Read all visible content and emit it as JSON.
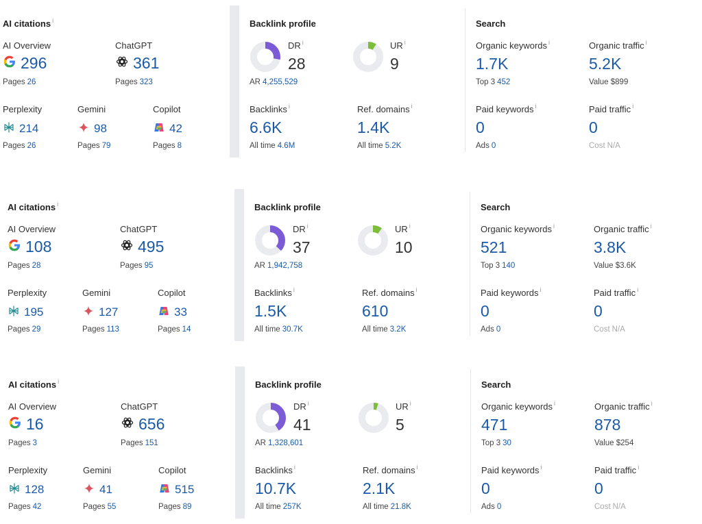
{
  "labels": {
    "ai_citations": "AI citations",
    "backlink_profile": "Backlink profile",
    "search": "Search",
    "ai_overview": "AI Overview",
    "chatgpt": "ChatGPT",
    "perplexity": "Perplexity",
    "gemini": "Gemini",
    "copilot": "Copilot",
    "pages": "Pages",
    "dr": "DR",
    "ur": "UR",
    "ar": "AR",
    "backlinks": "Backlinks",
    "ref_domains": "Ref. domains",
    "all_time": "All time",
    "organic_keywords": "Organic keywords",
    "organic_traffic": "Organic traffic",
    "top3": "Top 3",
    "value": "Value",
    "paid_keywords": "Paid keywords",
    "paid_traffic": "Paid traffic",
    "ads": "Ads",
    "cost": "Cost",
    "info": "i"
  },
  "colors": {
    "accent": "#1a5aa8",
    "dr": "#7b5cd6",
    "ur": "#7cbd3a",
    "ring": "#e9ebef",
    "separator": "#e8eaed"
  },
  "rows": [
    {
      "ai": {
        "ai_overview": "296",
        "ai_overview_pages": "26",
        "chatgpt": "361",
        "chatgpt_pages": "323",
        "perplexity": "214",
        "perplexity_pages": "26",
        "gemini": "98",
        "gemini_pages": "79",
        "copilot": "42",
        "copilot_pages": "8"
      },
      "backlink": {
        "dr": "28",
        "dr_fraction": 0.28,
        "ar": "4,255,529",
        "ur": "9",
        "ur_fraction": 0.09,
        "backlinks": "6.6K",
        "backlinks_all_time": "4.6M",
        "ref_domains": "1.4K",
        "ref_domains_all_time": "5.2K"
      },
      "search": {
        "organic_keywords": "1.7K",
        "top3": "452",
        "organic_traffic": "5.2K",
        "value": "$899",
        "paid_keywords": "0",
        "ads": "0",
        "paid_traffic": "0",
        "cost": "N/A"
      }
    },
    {
      "ai": {
        "ai_overview": "108",
        "ai_overview_pages": "28",
        "chatgpt": "495",
        "chatgpt_pages": "95",
        "perplexity": "195",
        "perplexity_pages": "29",
        "gemini": "127",
        "gemini_pages": "113",
        "copilot": "33",
        "copilot_pages": "14"
      },
      "backlink": {
        "dr": "37",
        "dr_fraction": 0.37,
        "ar": "1,942,758",
        "ur": "10",
        "ur_fraction": 0.1,
        "backlinks": "1.5K",
        "backlinks_all_time": "30.7K",
        "ref_domains": "610",
        "ref_domains_all_time": "3.2K"
      },
      "search": {
        "organic_keywords": "521",
        "top3": "140",
        "organic_traffic": "3.8K",
        "value": "$3.6K",
        "paid_keywords": "0",
        "ads": "0",
        "paid_traffic": "0",
        "cost": "N/A"
      }
    },
    {
      "ai": {
        "ai_overview": "16",
        "ai_overview_pages": "3",
        "chatgpt": "656",
        "chatgpt_pages": "151",
        "perplexity": "128",
        "perplexity_pages": "42",
        "gemini": "41",
        "gemini_pages": "55",
        "copilot": "515",
        "copilot_pages": "89"
      },
      "backlink": {
        "dr": "41",
        "dr_fraction": 0.41,
        "ar": "1,328,601",
        "ur": "5",
        "ur_fraction": 0.05,
        "backlinks": "10.7K",
        "backlinks_all_time": "257K",
        "ref_domains": "2.1K",
        "ref_domains_all_time": "21.8K"
      },
      "search": {
        "organic_keywords": "471",
        "top3": "30",
        "organic_traffic": "878",
        "value": "$254",
        "paid_keywords": "0",
        "ads": "0",
        "paid_traffic": "0",
        "cost": "N/A"
      }
    }
  ]
}
